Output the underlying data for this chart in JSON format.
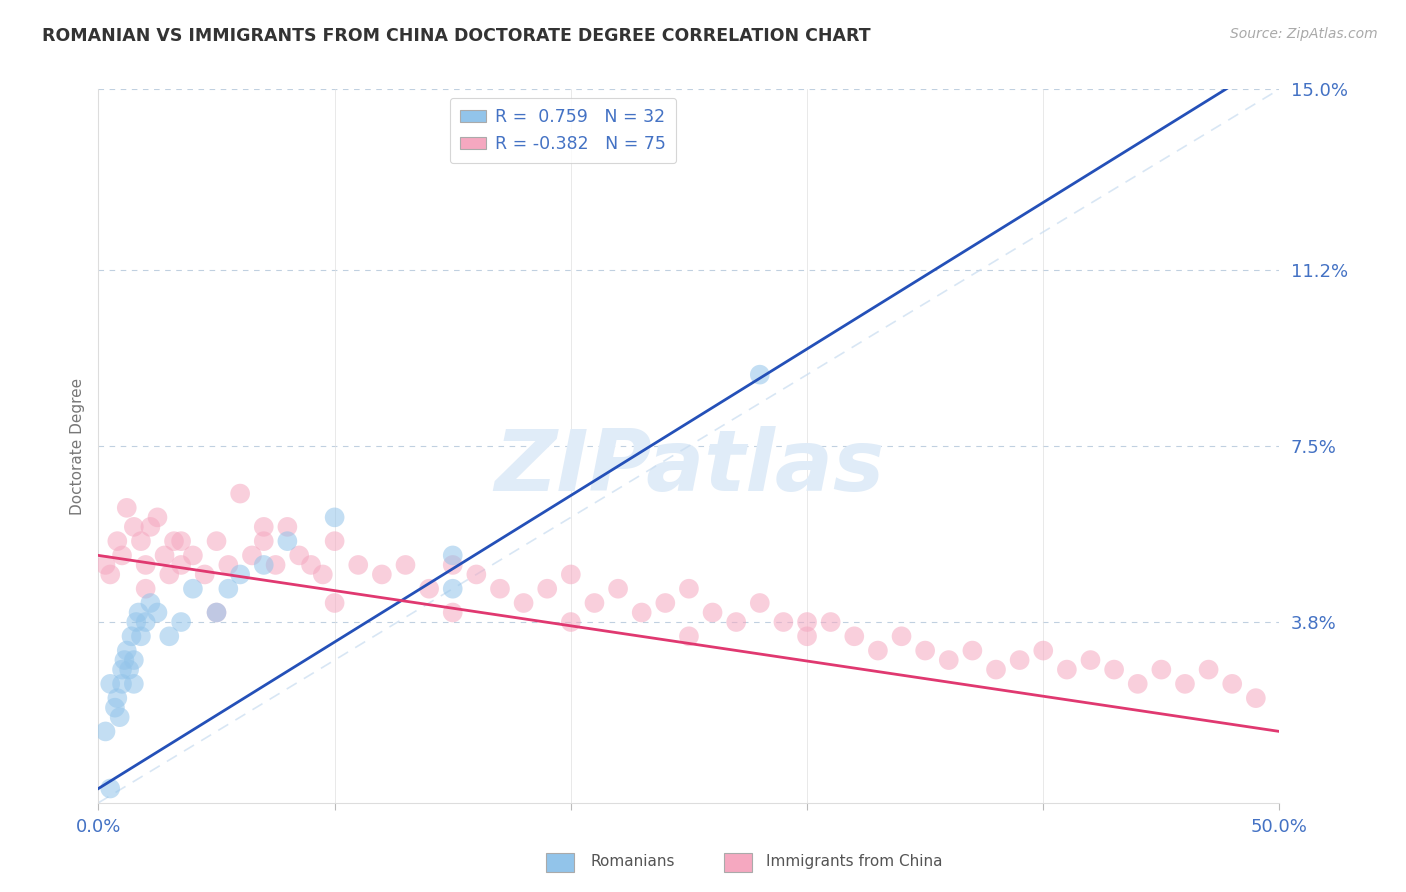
{
  "title": "ROMANIAN VS IMMIGRANTS FROM CHINA DOCTORATE DEGREE CORRELATION CHART",
  "source": "Source: ZipAtlas.com",
  "ylabel": "Doctorate Degree",
  "xlim": [
    0.0,
    50.0
  ],
  "ylim": [
    0.0,
    15.0
  ],
  "yticks": [
    0.0,
    3.8,
    7.5,
    11.2,
    15.0
  ],
  "xticks": [
    0,
    10,
    20,
    30,
    40,
    50
  ],
  "color_romanian": "#92C4EA",
  "color_china": "#F5A8C0",
  "color_line_romanian": "#2450B8",
  "color_line_china": "#E03870",
  "color_diagonal": "#C8DCF0",
  "color_grid": "#D8E8F0",
  "color_axis_label": "#4472C4",
  "background_color": "#FFFFFF",
  "watermark_color": "#E0ECF8",
  "legend_entry1": "R =  0.759   N = 32",
  "legend_entry2": "R = -0.382   N = 75",
  "romanians_x": [
    0.3,
    0.5,
    0.5,
    0.7,
    0.8,
    0.9,
    1.0,
    1.0,
    1.1,
    1.2,
    1.3,
    1.4,
    1.5,
    1.5,
    1.6,
    1.7,
    1.8,
    2.0,
    2.2,
    2.5,
    3.0,
    3.5,
    4.0,
    5.0,
    5.5,
    6.0,
    7.0,
    8.0,
    10.0,
    15.0,
    15.0,
    28.0
  ],
  "romanians_y": [
    1.5,
    0.3,
    2.5,
    2.0,
    2.2,
    1.8,
    2.5,
    2.8,
    3.0,
    3.2,
    2.8,
    3.5,
    2.5,
    3.0,
    3.8,
    4.0,
    3.5,
    3.8,
    4.2,
    4.0,
    3.5,
    3.8,
    4.5,
    4.0,
    4.5,
    4.8,
    5.0,
    5.5,
    6.0,
    5.2,
    4.5,
    9.0
  ],
  "china_x": [
    0.3,
    0.5,
    0.8,
    1.0,
    1.2,
    1.5,
    1.8,
    2.0,
    2.2,
    2.5,
    2.8,
    3.0,
    3.2,
    3.5,
    4.0,
    4.5,
    5.0,
    5.5,
    6.0,
    6.5,
    7.0,
    7.5,
    8.0,
    8.5,
    9.0,
    9.5,
    10.0,
    11.0,
    12.0,
    13.0,
    14.0,
    15.0,
    16.0,
    17.0,
    18.0,
    19.0,
    20.0,
    21.0,
    22.0,
    23.0,
    24.0,
    25.0,
    26.0,
    27.0,
    28.0,
    29.0,
    30.0,
    31.0,
    32.0,
    33.0,
    34.0,
    35.0,
    36.0,
    37.0,
    38.0,
    39.0,
    40.0,
    41.0,
    42.0,
    43.0,
    44.0,
    45.0,
    46.0,
    47.0,
    48.0,
    49.0,
    2.0,
    3.5,
    5.0,
    7.0,
    10.0,
    15.0,
    20.0,
    25.0,
    30.0
  ],
  "china_y": [
    5.0,
    4.8,
    5.5,
    5.2,
    6.2,
    5.8,
    5.5,
    5.0,
    5.8,
    6.0,
    5.2,
    4.8,
    5.5,
    5.0,
    5.2,
    4.8,
    5.5,
    5.0,
    6.5,
    5.2,
    5.5,
    5.0,
    5.8,
    5.2,
    5.0,
    4.8,
    5.5,
    5.0,
    4.8,
    5.0,
    4.5,
    5.0,
    4.8,
    4.5,
    4.2,
    4.5,
    4.8,
    4.2,
    4.5,
    4.0,
    4.2,
    4.5,
    4.0,
    3.8,
    4.2,
    3.8,
    3.5,
    3.8,
    3.5,
    3.2,
    3.5,
    3.2,
    3.0,
    3.2,
    2.8,
    3.0,
    3.2,
    2.8,
    3.0,
    2.8,
    2.5,
    2.8,
    2.5,
    2.8,
    2.5,
    2.2,
    4.5,
    5.5,
    4.0,
    5.8,
    4.2,
    4.0,
    3.8,
    3.5,
    3.8
  ]
}
